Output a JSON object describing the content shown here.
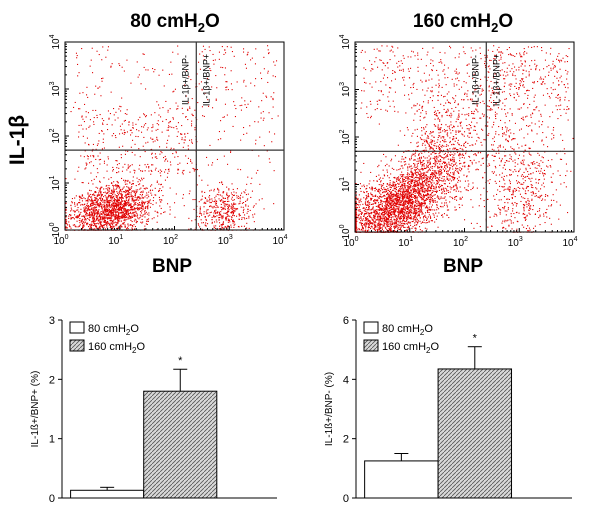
{
  "chart_data": [
    {
      "type": "scatter",
      "title_main": "80 cmH",
      "title_sub": "2",
      "title_tail": "O",
      "xlabel": "BNP",
      "ylabel": "IL-1β",
      "x_scale": "log",
      "y_scale": "log",
      "x_ticks": [
        {
          "base": "10",
          "exp": "0"
        },
        {
          "base": "10",
          "exp": "1"
        },
        {
          "base": "10",
          "exp": "2"
        },
        {
          "base": "10",
          "exp": "3"
        },
        {
          "base": "10",
          "exp": "4"
        }
      ],
      "y_ticks": [
        {
          "base": "10",
          "exp": "0"
        },
        {
          "base": "10",
          "exp": "1"
        },
        {
          "base": "10",
          "exp": "2"
        },
        {
          "base": "10",
          "exp": "3"
        },
        {
          "base": "10",
          "exp": "4"
        }
      ],
      "quadrant_labels": [
        "IL-1β+/BNP-",
        "IL-1β+/BNP+"
      ],
      "gate_x": 250,
      "gate_y": 50,
      "point_color": "#e00000"
    },
    {
      "type": "scatter",
      "title_main": "160 cmH",
      "title_sub": "2",
      "title_tail": "O",
      "xlabel": "BNP",
      "x_scale": "log",
      "y_scale": "log",
      "x_ticks": [
        {
          "base": "10",
          "exp": "0"
        },
        {
          "base": "10",
          "exp": "1"
        },
        {
          "base": "10",
          "exp": "2"
        },
        {
          "base": "10",
          "exp": "3"
        },
        {
          "base": "10",
          "exp": "4"
        }
      ],
      "y_ticks": [
        {
          "base": "10",
          "exp": "0"
        },
        {
          "base": "10",
          "exp": "1"
        },
        {
          "base": "10",
          "exp": "2"
        },
        {
          "base": "10",
          "exp": "3"
        },
        {
          "base": "10",
          "exp": "4"
        }
      ],
      "quadrant_labels": [
        "IL-1β+/BNP-",
        "IL-1β+/BNP+"
      ],
      "gate_x": 250,
      "gate_y": 50,
      "point_color": "#e00000"
    },
    {
      "type": "bar",
      "categories": [
        "80 cmH2O",
        "160 cmH2O"
      ],
      "values": [
        0.13,
        1.8
      ],
      "errors": [
        0.05,
        0.37
      ],
      "significance": [
        "",
        "*"
      ],
      "ylabel": "IL-1ß+/BNP+ (%)",
      "ylim": [
        0,
        3
      ],
      "y_ticks": [
        "0",
        "1",
        "2",
        "3"
      ],
      "legend": [
        {
          "main": "80 cmH",
          "sub": "2",
          "tail": "O",
          "fill": "white"
        },
        {
          "main": "160 cmH",
          "sub": "2",
          "tail": "O",
          "fill": "hatched"
        }
      ],
      "legend_position": "top-left"
    },
    {
      "type": "bar",
      "categories": [
        "80 cmH2O",
        "160 cmH2O"
      ],
      "values": [
        1.25,
        4.35
      ],
      "errors": [
        0.25,
        0.75
      ],
      "significance": [
        "",
        "*"
      ],
      "ylabel": "IL-1ß+/BNP- (%)",
      "ylim": [
        0,
        6
      ],
      "y_ticks": [
        "0",
        "2",
        "4",
        "6"
      ],
      "legend": [
        {
          "main": "80 cmH",
          "sub": "2",
          "tail": "O",
          "fill": "white"
        },
        {
          "main": "160 cmH",
          "sub": "2",
          "tail": "O",
          "fill": "hatched"
        }
      ],
      "legend_position": "top-left"
    }
  ]
}
